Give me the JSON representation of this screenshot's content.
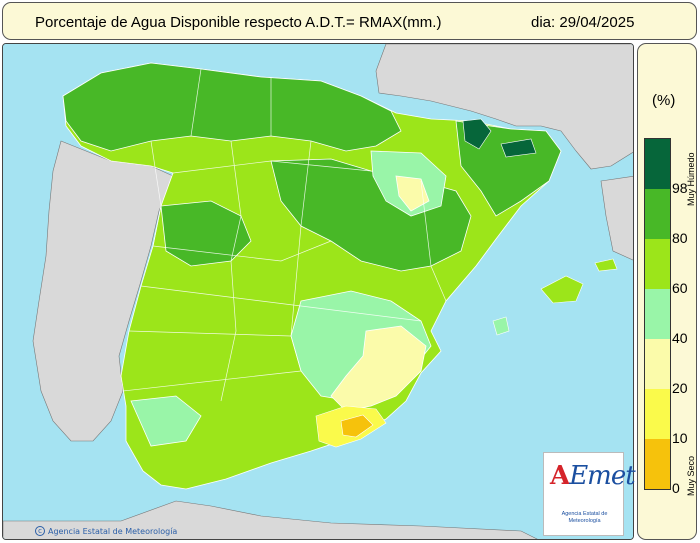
{
  "header": {
    "title": "Porcentaje de Agua Disponible respecto A.D.T.= RMAX(mm.)",
    "date": "dia: 29/04/2025"
  },
  "map": {
    "credit": "Agencia Estatal de Meteorología",
    "credit_icon": "copyright-icon",
    "logo": {
      "text_a": "A",
      "text_rest": "Emet",
      "subtitle": "Agencia Estatal de Meteorología"
    },
    "colors": {
      "sea": "#a5e3f2",
      "foreign_land": "#d9d9d9",
      "very_wet": "#06663a",
      "wet_80_98": "#48b827",
      "60_80": "#9ce51a",
      "40_60": "#99f5a8",
      "20_40": "#fbfbaa",
      "10_20": "#fafa4b",
      "0_10": "#f6c20c"
    }
  },
  "legend": {
    "unit": "(%)",
    "top_label": "Muy Húmedo",
    "bottom_label": "Muy Seco",
    "ticks": [
      "98",
      "80",
      "60",
      "40",
      "20",
      "10",
      "0"
    ],
    "classes": [
      {
        "range": "98-100",
        "color": "#06663a"
      },
      {
        "range": "80-98",
        "color": "#48b827"
      },
      {
        "range": "60-80",
        "color": "#9ce51a"
      },
      {
        "range": "40-60",
        "color": "#99f5a8"
      },
      {
        "range": "20-40",
        "color": "#fbfbaa"
      },
      {
        "range": "10-20",
        "color": "#fafa4b"
      },
      {
        "range": "0-10",
        "color": "#f6c20c"
      }
    ]
  }
}
